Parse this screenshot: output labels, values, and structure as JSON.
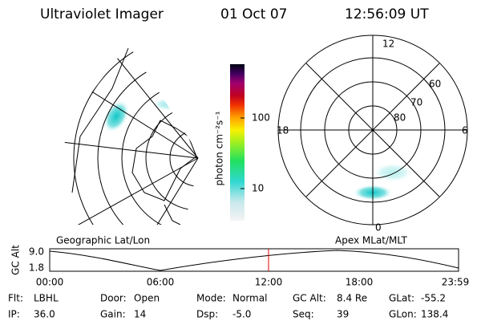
{
  "header": {
    "instrument": "Ultraviolet Imager",
    "date": "01 Oct 07",
    "time": "12:56:09 UT"
  },
  "colorbar": {
    "label": "photon cm⁻²s⁻¹",
    "ticks": [
      "100",
      "10"
    ]
  },
  "geographic_panel": {
    "label": "Geographic Lat/Lon"
  },
  "polar_panel": {
    "label": "Apex MLat/MLT",
    "mlt_labels": {
      "top": "12",
      "left": "18",
      "right": "6",
      "bottom": "0"
    },
    "lat_labels": [
      "60",
      "70",
      "80"
    ]
  },
  "altitude_plot": {
    "ylabel": "GC Alt",
    "yticks": [
      "9.0",
      "1.8"
    ],
    "xticks": [
      "00:00",
      "06:00",
      "12:00",
      "18:00",
      "23:59"
    ]
  },
  "footer": {
    "rows": [
      [
        {
          "label": "Flt:",
          "value": "LBHL"
        },
        {
          "label": "Door:",
          "value": "Open"
        },
        {
          "label": "Mode:",
          "value": "Normal"
        },
        {
          "label": "GC Alt:",
          "value": "8.4 Re"
        },
        {
          "label": "GLat:",
          "value": "-55.2"
        }
      ],
      [
        {
          "label": "IP:",
          "value": "36.0"
        },
        {
          "label": "Gain:",
          "value": "14"
        },
        {
          "label": "Dsp:",
          "value": "-5.0"
        },
        {
          "label": "Seq:",
          "value": "39"
        },
        {
          "label": "GLon:",
          "value": "138.4"
        }
      ]
    ]
  }
}
